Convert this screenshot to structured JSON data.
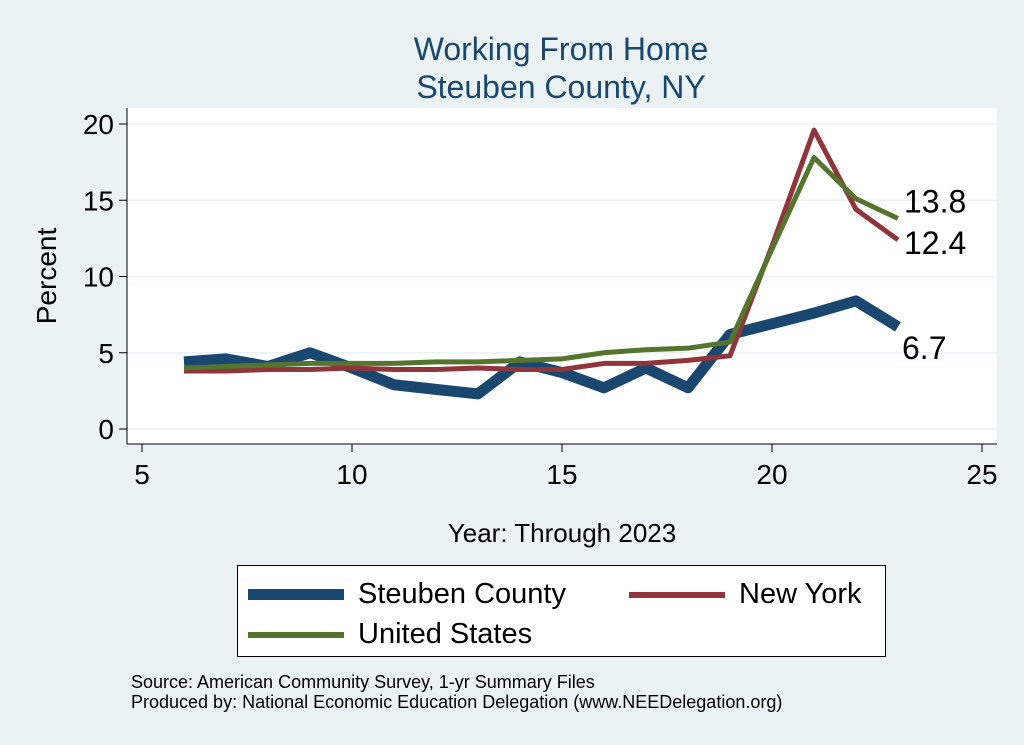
{
  "chart_data": {
    "type": "line",
    "title": "Working From Home",
    "subtitle": "Steuben County, NY",
    "xlabel": "Year: Through 2023",
    "ylabel": "Percent",
    "xlim": [
      5,
      25
    ],
    "ylim": [
      0,
      20
    ],
    "xticks": [
      5,
      10,
      15,
      20,
      25
    ],
    "yticks": [
      0,
      5,
      10,
      15,
      20
    ],
    "grid": true,
    "legend_position": "bottom",
    "series": [
      {
        "name": "Steuben County",
        "color": "#1a476f",
        "x": [
          6,
          7,
          8,
          9,
          10,
          11,
          12,
          13,
          14,
          15,
          16,
          17,
          18,
          19,
          20,
          21,
          22,
          23
        ],
        "values": [
          4.4,
          4.6,
          4.1,
          5.0,
          4.0,
          2.9,
          2.6,
          2.3,
          4.4,
          3.7,
          2.7,
          4.0,
          2.7,
          6.2,
          6.9,
          7.6,
          8.4,
          6.7
        ],
        "end_label": "6.7"
      },
      {
        "name": "New York",
        "color": "#90353b",
        "x": [
          6,
          7,
          8,
          9,
          10,
          11,
          12,
          13,
          14,
          15,
          16,
          17,
          18,
          19,
          20,
          21,
          22,
          23
        ],
        "values": [
          3.8,
          3.8,
          3.9,
          3.9,
          4.0,
          3.9,
          3.9,
          4.0,
          3.9,
          3.9,
          4.3,
          4.3,
          4.5,
          4.8,
          12.0,
          19.6,
          14.4,
          12.4
        ],
        "end_label": "12.4"
      },
      {
        "name": "United States",
        "color": "#55752f",
        "x": [
          6,
          7,
          8,
          9,
          10,
          11,
          12,
          13,
          14,
          15,
          16,
          17,
          18,
          19,
          20,
          21,
          22,
          23
        ],
        "values": [
          4.0,
          4.1,
          4.2,
          4.3,
          4.3,
          4.3,
          4.4,
          4.4,
          4.5,
          4.6,
          5.0,
          5.2,
          5.3,
          5.7,
          11.8,
          17.8,
          15.1,
          13.8
        ],
        "end_label": "13.8"
      }
    ]
  },
  "notes": {
    "source": "Source: American Community Survey, 1-yr Summary Files",
    "produced": "Produced by: National Economic Education Delegation (www.NEEDelegation.org)"
  }
}
